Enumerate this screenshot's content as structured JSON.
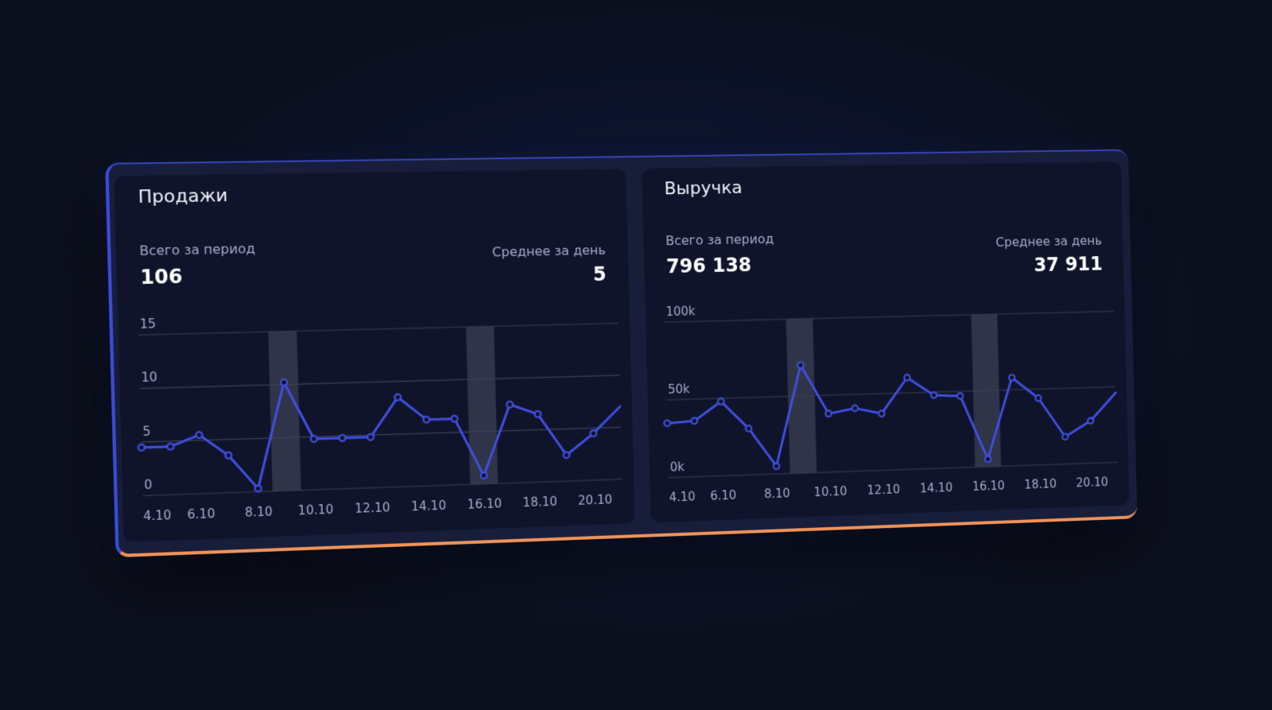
{
  "panels": [
    {
      "title": "Продажи",
      "total_label": "Всего за период",
      "total_value": "106",
      "avg_label": "Среднее за день",
      "avg_value": "5"
    },
    {
      "title": "Выручка",
      "total_label": "Всего за период",
      "total_value": "796 138",
      "avg_label": "Среднее за день",
      "avg_value": "37 911"
    }
  ],
  "colors": {
    "line": "#3f4fe0",
    "grid": "#3a4057",
    "highlight": "#4a4f60",
    "tick": "#a5acc3",
    "accent_bottom": "#f0935a"
  },
  "chart_data": [
    {
      "type": "line",
      "title": "Продажи",
      "x": [
        "4.10",
        "5.10",
        "6.10",
        "7.10",
        "8.10",
        "9.10",
        "10.10",
        "11.10",
        "12.10",
        "13.10",
        "14.10",
        "15.10",
        "16.10",
        "17.10",
        "18.10",
        "19.10",
        "20.10",
        "21.10"
      ],
      "xtick_labels": [
        "4.10",
        "6.10",
        "8.10",
        "10.10",
        "12.10",
        "14.10",
        "16.10",
        "18.10",
        "20.10"
      ],
      "series": [
        {
          "values": [
            4.5,
            4.5,
            5.5,
            3.5,
            0.3,
            10.2,
            4.8,
            4.8,
            4.8,
            8.5,
            6.3,
            6.3,
            0.8,
            7.5,
            6.5,
            2.5,
            4.5,
            7.0
          ]
        }
      ],
      "ylim": [
        0,
        15
      ],
      "yticks": [
        0,
        5,
        10,
        15
      ],
      "ytick_labels": [
        "0",
        "5",
        "10",
        "15"
      ],
      "highlight_ranges": [
        [
          "8.10",
          "9.10"
        ],
        [
          "15.10",
          "16.10"
        ]
      ],
      "grid": true
    },
    {
      "type": "line",
      "title": "Выручка",
      "x": [
        "4.10",
        "5.10",
        "6.10",
        "7.10",
        "8.10",
        "9.10",
        "10.10",
        "11.10",
        "12.10",
        "13.10",
        "14.10",
        "15.10",
        "16.10",
        "17.10",
        "18.10",
        "19.10",
        "20.10",
        "21.10"
      ],
      "xtick_labels": [
        "4.10",
        "6.10",
        "8.10",
        "10.10",
        "12.10",
        "14.10",
        "16.10",
        "18.10",
        "20.10"
      ],
      "series": [
        {
          "values": [
            35000,
            36000,
            48000,
            30000,
            5000,
            70000,
            38000,
            41000,
            37000,
            60000,
            48000,
            47000,
            5000,
            58000,
            44000,
            18000,
            28000,
            46000
          ]
        }
      ],
      "ylim": [
        0,
        100000
      ],
      "yticks": [
        0,
        50000,
        100000
      ],
      "ytick_labels": [
        "0k",
        "50k",
        "100k"
      ],
      "highlight_ranges": [
        [
          "8.10",
          "9.10"
        ],
        [
          "15.10",
          "16.10"
        ]
      ],
      "grid": true
    }
  ]
}
